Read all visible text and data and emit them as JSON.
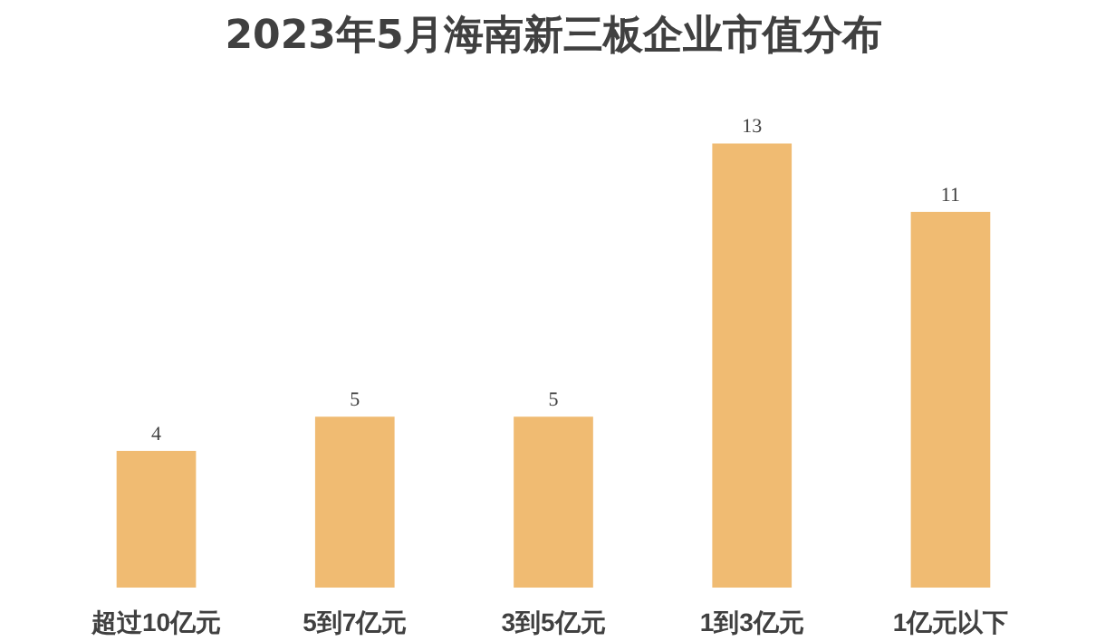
{
  "chart_data": {
    "type": "bar",
    "title": "2023年5月海南新三板企业市值分布",
    "categories": [
      "超过10亿元",
      "5到7亿元",
      "3到5亿元",
      "1到3亿元",
      "1亿元以下"
    ],
    "values": [
      4,
      5,
      5,
      13,
      11
    ],
    "color": "#f0bb72",
    "data_labels": true,
    "grid": false
  }
}
